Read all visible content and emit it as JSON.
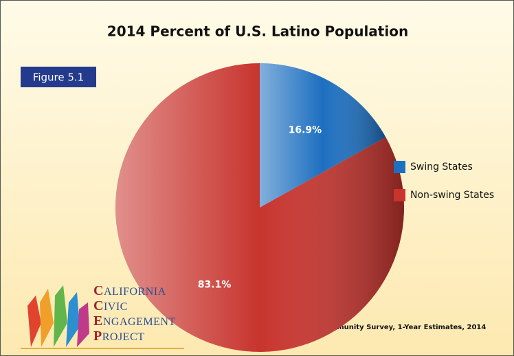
{
  "chart_data": {
    "type": "pie",
    "title": "2014 Percent of U.S. Latino Population",
    "figure_label": "Figure 5.1",
    "categories": [
      "Swing States",
      "Non-swing States"
    ],
    "values": [
      16.9,
      83.1
    ],
    "value_labels": [
      "16.9%",
      "83.1%"
    ],
    "colors": [
      "#1d6fc0",
      "#c8342e"
    ],
    "legend": "right",
    "source": "Data Source: American Community Survey, 1-Year Estimates, 2014"
  },
  "logo": {
    "lines": [
      "CALIFORNIA",
      "CIVIC",
      "ENGAGEMENT",
      "PROJECT"
    ]
  }
}
